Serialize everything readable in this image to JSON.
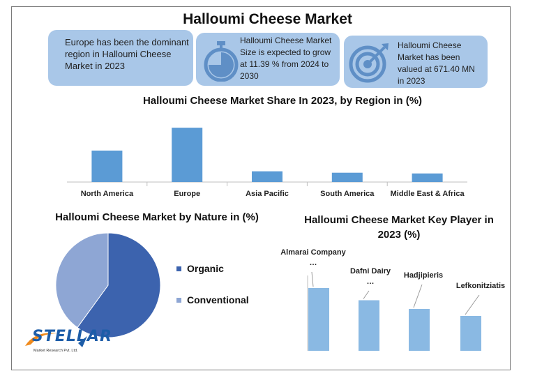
{
  "page": {
    "title": "Halloumi Cheese Market"
  },
  "infoboxes": [
    {
      "text": "Europe has been the dominant region in Halloumi Cheese Market in 2023",
      "icon": "none"
    },
    {
      "text": "Halloumi Cheese Market Size is expected to grow at 11.39 % from 2024 to 2030",
      "icon": "stopwatch-icon"
    },
    {
      "text": "Halloumi Cheese Market has been valued at 671.40 MN in 2023",
      "icon": "target-icon"
    }
  ],
  "logo": {
    "name": "STELLAR",
    "subtitle": "Market Research Pvt. Ltd."
  },
  "colors": {
    "bar": "#5b9bd5",
    "organic": "#3c63ae",
    "conventional": "#8ea6d4",
    "keyplayer_bar": "#8ab9e3",
    "infobox": "#a9c7e8"
  },
  "chart_data": [
    {
      "type": "bar",
      "title": "Halloumi Cheese Market Share In 2023, by Region in (%)",
      "categories": [
        "North America",
        "Europe",
        "Asia Pacific",
        "South America",
        "Middle East & Africa"
      ],
      "values": [
        22,
        38,
        7.5,
        6.5,
        6
      ],
      "ylim": [
        0,
        40
      ],
      "grid": false
    },
    {
      "type": "pie",
      "title": "Halloumi Cheese Market by Nature in (%)",
      "labels": [
        "Organic",
        "Conventional"
      ],
      "values": [
        60,
        40
      ],
      "legend": "right"
    },
    {
      "type": "bar",
      "title": "Halloumi Cheese Market Key Player in 2023 (%)",
      "categories": [
        "Almarai Company …",
        "Dafni Dairy …",
        "Hadjipieris",
        "Lefkonitziatis"
      ],
      "values": [
        36,
        29,
        24,
        20
      ],
      "ylim": [
        0,
        40
      ],
      "grid": false
    }
  ]
}
